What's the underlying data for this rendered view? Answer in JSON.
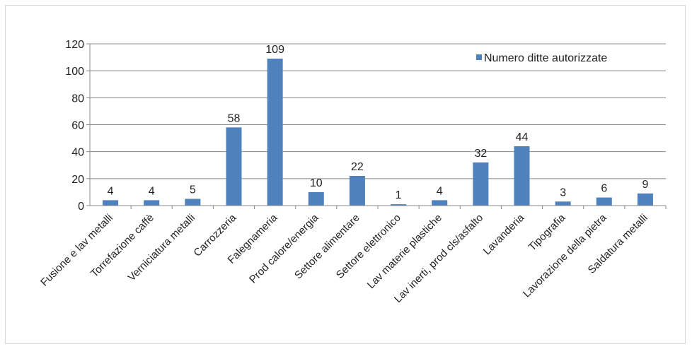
{
  "chart_data": {
    "type": "bar",
    "categories": [
      "Fusione e lav metalli",
      "Torrefazione caffè",
      "Verniciatura metalli",
      "Carrozzeria",
      "Falegnameria",
      "Prod calore/energia",
      "Settore alimentare",
      "Settore elettronico",
      "Lav materie plastiche",
      "Lav inerti, prod cls/asfalto",
      "Lavanderia",
      "Tipografia",
      "Lavorazione della pietra",
      "Saldatura metalli"
    ],
    "series": [
      {
        "name": "Numero ditte autorizzate",
        "values": [
          4,
          4,
          5,
          58,
          109,
          10,
          22,
          1,
          4,
          32,
          44,
          3,
          6,
          9
        ]
      }
    ],
    "title": "",
    "xlabel": "",
    "ylabel": "",
    "ylim": [
      0,
      120
    ],
    "yticks": [
      0,
      20,
      40,
      60,
      80,
      100,
      120
    ],
    "grid": true,
    "legend_position": "top-right",
    "colors": {
      "bar": "#4f81bd",
      "grid": "#888888",
      "axis": "#888888"
    }
  }
}
